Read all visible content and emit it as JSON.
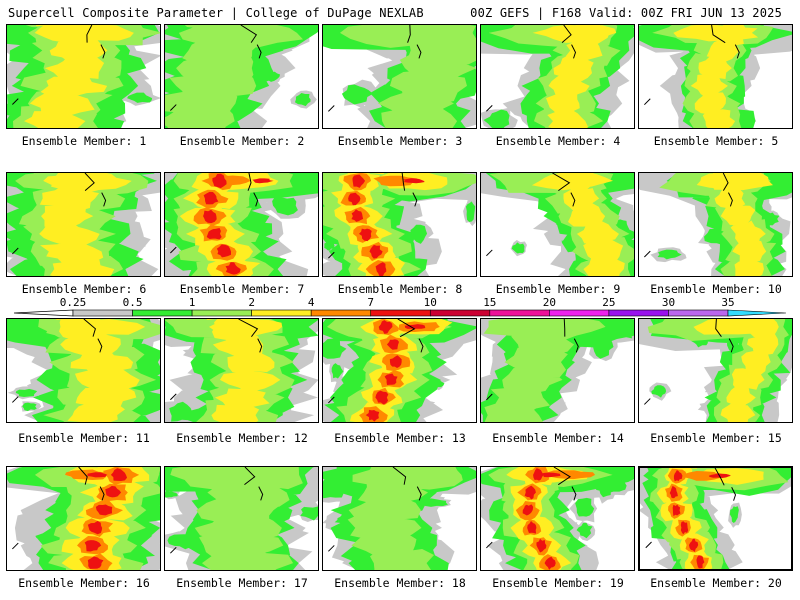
{
  "header": {
    "left": "Supercell Composite Parameter | College of DuPage NEXLAB",
    "right": "00Z GEFS | F168 Valid: 00Z FRI JUN 13 2025"
  },
  "colorbar": {
    "ticks": [
      "0.25",
      "0.5",
      "1",
      "2",
      "4",
      "7",
      "10",
      "15",
      "20",
      "25",
      "30",
      "35"
    ],
    "colors": [
      "#c8c8c8",
      "#33ee33",
      "#99ee55",
      "#ffee22",
      "#ff8800",
      "#ee1111",
      "#cc0033",
      "#ee1199",
      "#ee22ee",
      "#9911ee",
      "#bb66ee",
      "#33ddff"
    ]
  },
  "members": [
    {
      "label": "Ensemble Member: 1",
      "intensity": 2
    },
    {
      "label": "Ensemble Member: 2",
      "intensity": 1
    },
    {
      "label": "Ensemble Member: 3",
      "intensity": 1
    },
    {
      "label": "Ensemble Member: 4",
      "intensity": 2
    },
    {
      "label": "Ensemble Member: 5",
      "intensity": 2
    },
    {
      "label": "Ensemble Member: 6",
      "intensity": 2
    },
    {
      "label": "Ensemble Member: 7",
      "intensity": 3
    },
    {
      "label": "Ensemble Member: 8",
      "intensity": 3
    },
    {
      "label": "Ensemble Member: 9",
      "intensity": 2
    },
    {
      "label": "Ensemble Member: 10",
      "intensity": 2
    },
    {
      "label": "Ensemble Member: 11",
      "intensity": 2
    },
    {
      "label": "Ensemble Member: 12",
      "intensity": 2
    },
    {
      "label": "Ensemble Member: 13",
      "intensity": 3
    },
    {
      "label": "Ensemble Member: 14",
      "intensity": 1
    },
    {
      "label": "Ensemble Member: 15",
      "intensity": 2
    },
    {
      "label": "Ensemble Member: 16",
      "intensity": 3
    },
    {
      "label": "Ensemble Member: 17",
      "intensity": 1
    },
    {
      "label": "Ensemble Member: 18",
      "intensity": 1
    },
    {
      "label": "Ensemble Member: 19",
      "intensity": 3
    },
    {
      "label": "Ensemble Member: 20",
      "intensity": 3
    }
  ]
}
